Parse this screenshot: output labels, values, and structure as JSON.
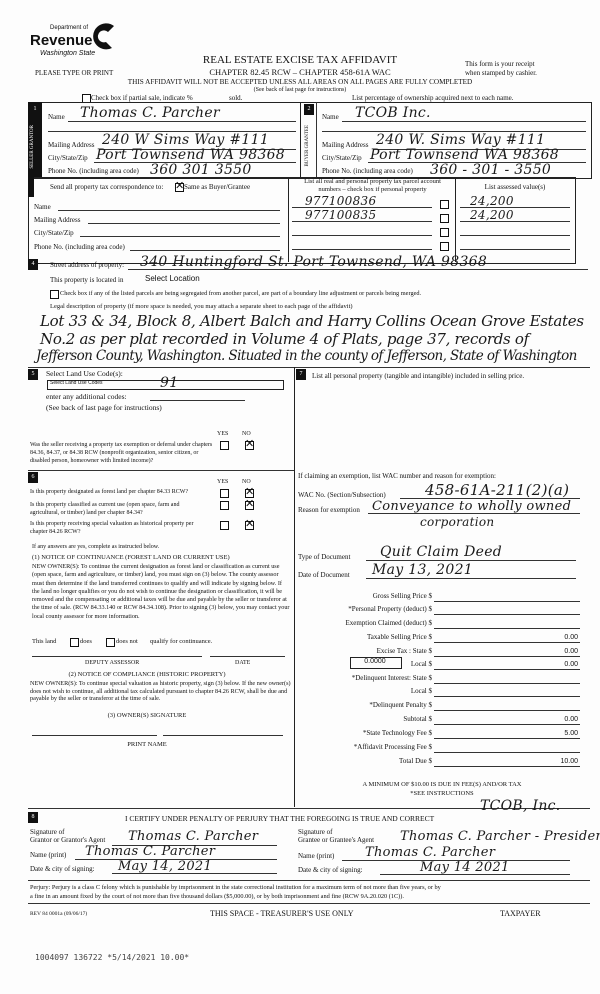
{
  "header": {
    "logo_line1": "Department of",
    "logo_line2": "Revenue",
    "logo_line3": "Washington State",
    "title": "REAL ESTATE EXCISE TAX AFFIDAVIT",
    "chapter": "CHAPTER 82.45 RCW – CHAPTER 458-61A WAC",
    "please": "PLEASE TYPE OR PRINT",
    "receipt1": "This form is your receipt",
    "receipt2": "when stamped by cashier.",
    "warning": "THIS AFFIDAVIT WILL NOT BE ACCEPTED UNLESS ALL AREAS ON ALL PAGES ARE FULLY COMPLETED",
    "see_back": "(See back of last page for instructions)",
    "partial_sale": "Check box if partial sale, indicate %",
    "sold": "sold.",
    "ownership": "List percentage of ownership acquired next to each name."
  },
  "seller": {
    "num": "1",
    "side_label": "SELLER GRANTOR",
    "name_label": "Name",
    "name": "Thomas C. Parcher",
    "mail_label": "Mailing Address",
    "mail": "240 W Sims Way #111",
    "city_label": "City/State/Zip",
    "city": "Port Townsend WA 98368",
    "phone_label": "Phone No. (including area code)",
    "phone": "360 301 3550"
  },
  "buyer": {
    "num": "2",
    "side_label": "BUYER GRANTEE",
    "name_label": "Name",
    "name": "TCOB Inc.",
    "mail_label": "Mailing Address",
    "mail": "240 W. Sims Way #111",
    "city_label": "City/State/Zip",
    "city": "Port Townsend WA 98368",
    "phone_label": "Phone No. (including area code)",
    "phone": "360 - 301 - 3550"
  },
  "correspondence": {
    "num": "3",
    "label": "Send all property tax correspondence to:",
    "same": "Same as Buyer/Grantee",
    "same_checked": true,
    "name_label": "Name",
    "mail_label": "Mailing Address",
    "city_label": "City/State/Zip",
    "phone_label": "Phone No. (including area code)",
    "parcel_header1": "List all real and personal property tax parcel account",
    "parcel_header2": "numbers – check box if personal property",
    "assessed_header": "List assessed value(s)",
    "parcels": [
      {
        "number": "977100836",
        "value": "24,200"
      },
      {
        "number": "977100835",
        "value": "24,200"
      },
      {
        "number": "",
        "value": ""
      },
      {
        "number": "",
        "value": ""
      }
    ]
  },
  "property": {
    "num": "4",
    "street_label": "Street address of property:",
    "street": "340 Huntingford St. Port Townsend, WA 98368",
    "located_label": "This property is located in",
    "located": "Select Location",
    "segregated": "Check box if any of the listed parcels are being segregated from another parcel, are part of a boundary line adjustment or parcels being merged.",
    "legal_label": "Legal description of property (if more space is needed, you may attach a separate sheet to each page of the affidavit)",
    "legal_lines": [
      "Lot 33 & 34, Block 8, Albert Balch and Harry Collins Ocean Grove Estates",
      "No.2 as per plat recorded in Volume 4 of Plats, page 37, records of",
      "Jefferson County, Washington. Situated in the county of Jefferson, State of Washington"
    ]
  },
  "land_use": {
    "num": "5",
    "label": "Select Land Use Code(s):",
    "select_placeholder": "Select Land Use Codes",
    "code": "91",
    "additional": "enter any additional codes:",
    "see_back": "(See back of last page for instructions)",
    "yes": "YES",
    "no": "NO",
    "question": "Was the seller receiving a property tax exemption or deferral under chapters 84.36, 84.37, or 84.38 RCW (nonprofit organization, senior citizen, or disabled person, homeowner with limited income)?",
    "answer": "NO"
  },
  "section6": {
    "num": "6",
    "yes": "YES",
    "no": "NO",
    "questions": [
      {
        "text": "Is this property designated as forest land per chapter 84.33 RCW?",
        "answer": "NO"
      },
      {
        "text": "Is this property classified as current use (open space, farm and agricultural, or timber) land per chapter 84.34?",
        "answer": "NO"
      },
      {
        "text": "Is this property receiving special valuation as historical property per chapter 84.26 RCW?",
        "answer": "NO"
      }
    ],
    "if_yes": "If any answers are yes, complete as instructed below.",
    "notice1_title": "(1) NOTICE OF CONTINUANCE  (FOREST LAND OR CURRENT USE)",
    "notice1_text": "NEW OWNER(S): To continue the current designation as forest land or classification as current use (open space, farm and agriculture, or timber) land, you must sign on (3) below. The county assessor must then determine if the land transferred continues to qualify and will indicate by signing below. If the land no longer qualifies or you do not wish to continue the designation or classification, it will be removed and the compensating or additional taxes will be due and payable by the seller or transferor at the time of sale. (RCW 84.33.140 or RCW 84.34.108). Prior to signing (3) below, you may contact your local county assessor for more information.",
    "this_land": "This land",
    "does": "does",
    "does_not": "does not",
    "qualify": "qualify for continuance.",
    "deputy": "DEPUTY ASSESSOR",
    "date": "DATE",
    "notice2_title": "(2) NOTICE OF COMPLIANCE (HISTORIC PROPERTY)",
    "notice2_text": "NEW OWNER(S): To continue special valuation as historic property, sign (3) below. If the new owner(s) does not wish to continue, all additional tax calculated pursuant to chapter 84.26 RCW, shall be due and payable by the seller or transferor at the time of sale.",
    "owner_sig": "(3) OWNER(S) SIGNATURE",
    "print_name": "PRINT NAME"
  },
  "section7": {
    "num": "7",
    "label": "List all personal property (tangible and intangible) included in selling price.",
    "exemption_label": "If claiming an exemption, list WAC number and reason for exemption:",
    "wac_label": "WAC No. (Section/Subsection)",
    "wac": "458-61A-211(2)(a)",
    "reason_label": "Reason for exemption",
    "reason1": "Conveyance to wholly owned",
    "reason2": "corporation",
    "doc_type_label": "Type of Document",
    "doc_type": "Quit Claim Deed",
    "doc_date_label": "Date of Document",
    "doc_date": "May 13, 2021",
    "rate": "0.0000",
    "fees": [
      {
        "label": "Gross Selling Price $",
        "value": ""
      },
      {
        "label": "*Personal Property (deduct) $",
        "value": ""
      },
      {
        "label": "Exemption Claimed (deduct) $",
        "value": ""
      },
      {
        "label": "Taxable Selling Price $",
        "value": "0.00"
      },
      {
        "label": "Excise Tax : State $",
        "value": "0.00"
      },
      {
        "label": "Local $",
        "value": "0.00"
      },
      {
        "label": "*Delinquent Interest: State $",
        "value": ""
      },
      {
        "label": "Local $",
        "value": ""
      },
      {
        "label": "*Delinquent Penalty $",
        "value": ""
      },
      {
        "label": "Subtotal $",
        "value": "0.00"
      },
      {
        "label": "*State Technology Fee $",
        "value": "5.00"
      },
      {
        "label": "*Affidavit Processing Fee $",
        "value": ""
      },
      {
        "label": "Total Due $",
        "value": "10.00"
      }
    ],
    "minimum": "A MINIMUM OF $10.00 IS DUE IN FEE(S) AND/OR TAX",
    "see_instr": "*SEE INSTRUCTIONS"
  },
  "section8": {
    "num": "8",
    "certify": "I CERTIFY UNDER PENALTY OF PERJURY THAT THE FOREGOING IS TRUE AND CORRECT",
    "grantee_note": "TCOB, Inc.",
    "grantor_sig_label1": "Signature of",
    "grantor_sig_label2": "Grantor or Grantor's Agent",
    "grantor_sig": "Thomas C. Parcher",
    "grantor_name_label": "Name (print)",
    "grantor_name": "Thomas C. Parcher",
    "grantor_date_label": "Date & city of signing:",
    "grantor_date": "May 14, 2021",
    "grantee_sig_label1": "Signature of",
    "grantee_sig_label2": "Grantee or Grantee's Agent",
    "grantee_sig": "Thomas C. Parcher - President",
    "grantee_name_label": "Name (print)",
    "grantee_name": "Thomas C. Parcher",
    "grantee_date_label": "Date & city of signing:",
    "grantee_date": "May 14 2021"
  },
  "footer": {
    "perjury": "Perjury: Perjury is a class C felony which is punishable by imprisonment in the state correctional institution for a maximum term of not more than five years, or by",
    "perjury2": "a fine in an amount fixed by the court of not more than five thousand dollars ($5,000.00), or by both imprisonment and fine (RCW 9A.20.020 (1C)).",
    "rev": "REV 84 0001a (09/06/17)",
    "treasurer": "THIS SPACE - TREASURER'S USE ONLY",
    "taxpayer": "TAXPAYER",
    "stamp": "1004097 136722 *5/14/2021 10.00*"
  }
}
